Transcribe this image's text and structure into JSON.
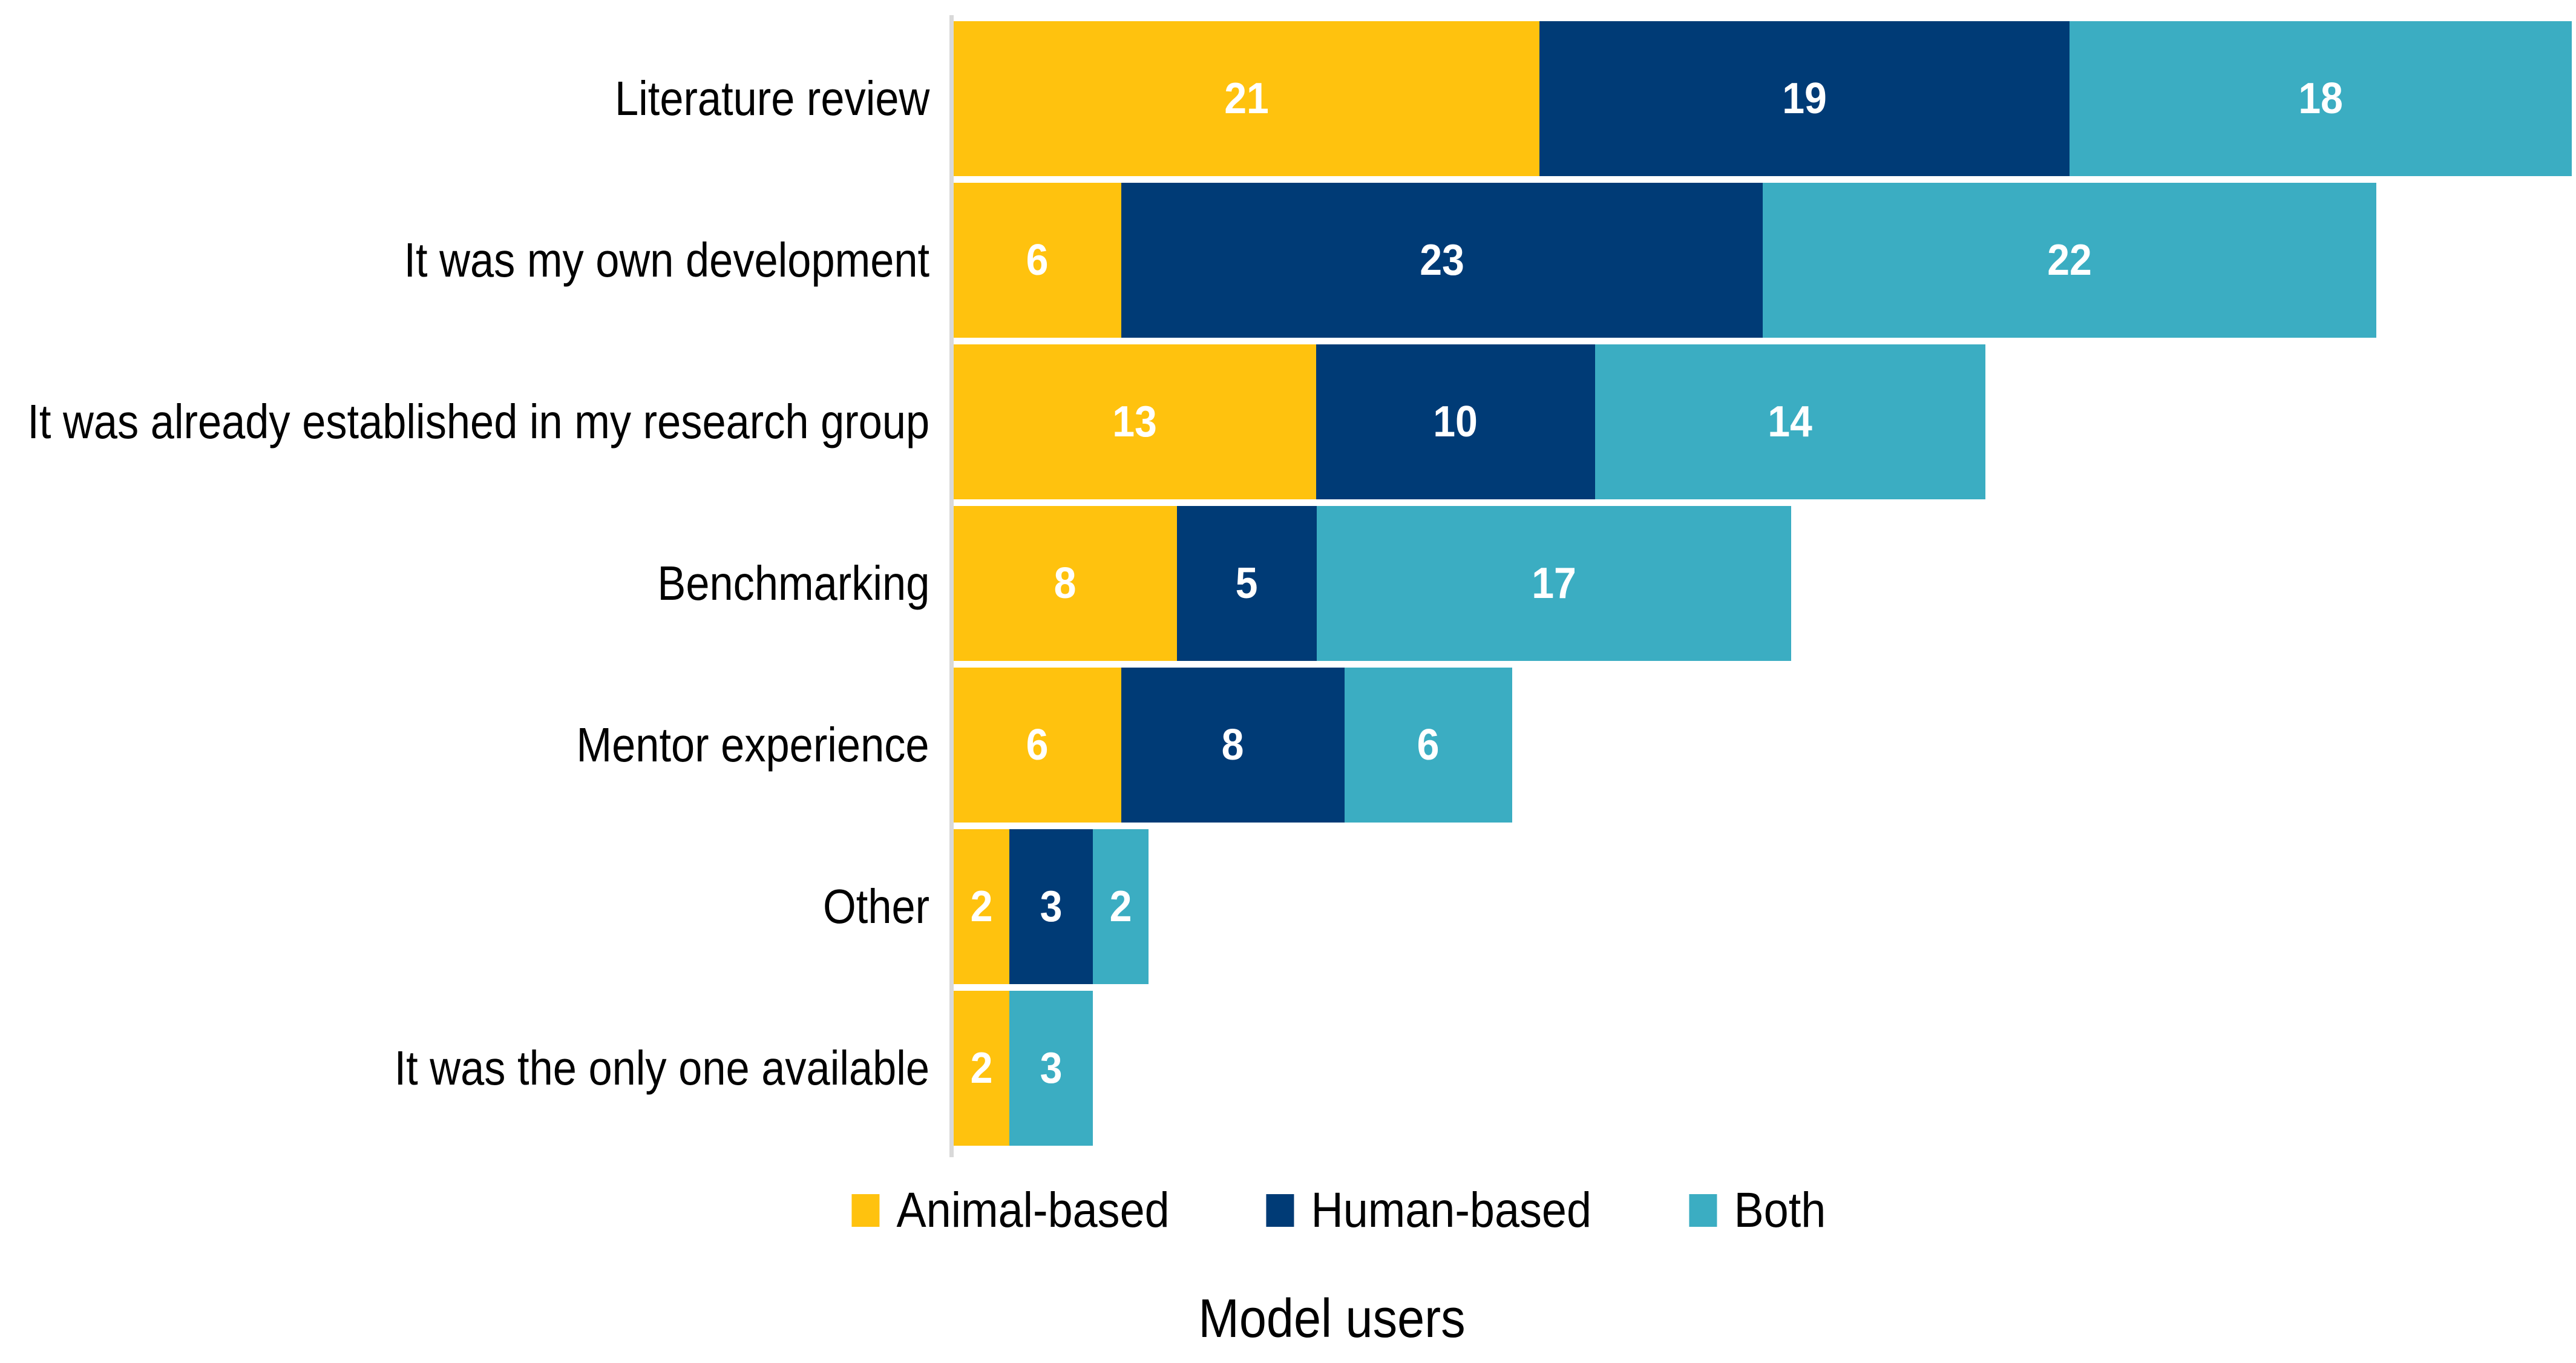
{
  "chart_data": {
    "type": "bar",
    "orientation": "horizontal",
    "stacked": true,
    "title": "",
    "xlabel": "Model users",
    "ylabel": "",
    "categories": [
      "Literature review",
      "It was my own development",
      "It was already established in my research group",
      "Benchmarking",
      "Mentor experience",
      "Other",
      "It was the only one available"
    ],
    "series": [
      {
        "name": "Animal-based",
        "color": "#FFC20E",
        "values": [
          21,
          6,
          13,
          8,
          6,
          2,
          2
        ]
      },
      {
        "name": "Human-based",
        "color": "#003B76",
        "values": [
          19,
          23,
          10,
          5,
          8,
          3,
          0
        ]
      },
      {
        "name": "Both",
        "color": "#3BADC2",
        "values": [
          18,
          22,
          14,
          17,
          6,
          2,
          3
        ]
      }
    ],
    "totals": [
      58,
      51,
      37,
      30,
      20,
      7,
      5
    ],
    "value_labels": {
      "color": "#FFFFFF",
      "bold": true,
      "hide_zero": true,
      "position": "center"
    },
    "legend": {
      "position": "bottom",
      "entries": [
        "Animal-based",
        "Human-based",
        "Both"
      ]
    },
    "axis": {
      "x_max": 58,
      "gridlines": false,
      "x_ticks_visible": false,
      "y_axis_line_color": "#D9D9D9"
    }
  }
}
